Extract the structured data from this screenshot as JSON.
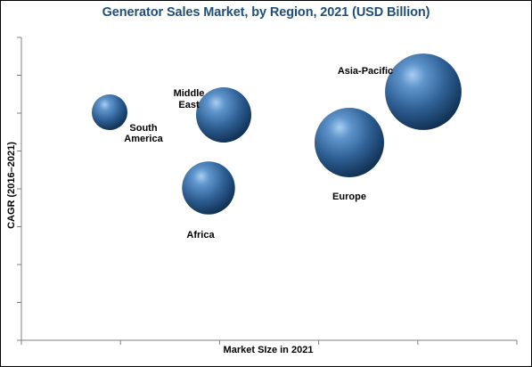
{
  "chart_data": {
    "type": "bubble",
    "title": "Generator Sales Market, by Region, 2021 (USD Billion)",
    "xlabel": "Market SIze in 2021",
    "ylabel": "CAGR (2016–2021)",
    "grid": false,
    "x_ticks_labeled": false,
    "y_ticks_labeled": false,
    "bubble_color": "#2e5f94",
    "title_color": "#1f4e79",
    "series": [
      {
        "label_lines": [
          "South",
          "America"
        ],
        "size": 1.0
      },
      {
        "label_lines": [
          "Middle",
          "East"
        ],
        "size": 2.4
      },
      {
        "label_lines": [
          "Africa"
        ],
        "size": 2.2
      },
      {
        "label_lines": [
          "Europe"
        ],
        "size": 3.8
      },
      {
        "label_lines": [
          "Asia-Pacific"
        ],
        "size": 4.6
      }
    ]
  }
}
